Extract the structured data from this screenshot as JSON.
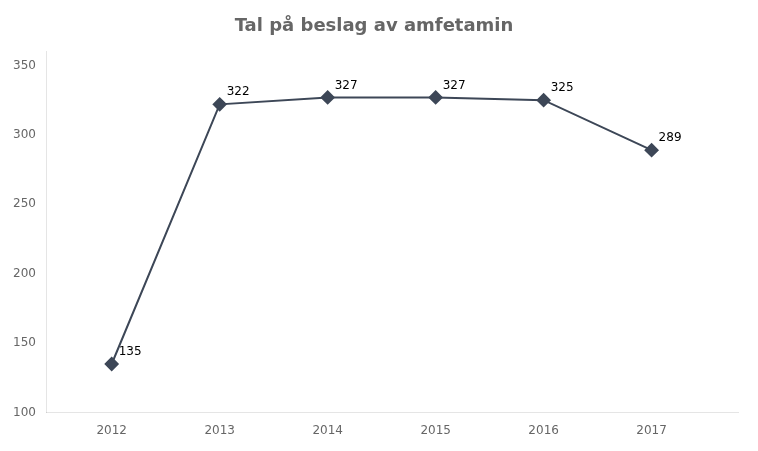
{
  "chart_data": {
    "type": "line",
    "title": "Tal på beslag av amfetamin",
    "x": [
      2012,
      2013,
      2014,
      2015,
      2016,
      2017
    ],
    "values": [
      135,
      322,
      327,
      327,
      325,
      289
    ],
    "color": "#3d4757",
    "marker": "diamond",
    "xlim": [
      2011.4,
      2017.8
    ],
    "xticks": [
      2012,
      2013,
      2014,
      2015,
      2016,
      2017
    ],
    "ylim": [
      100,
      360
    ],
    "yticks": [
      100,
      150,
      200,
      250,
      300,
      350
    ],
    "grid": false,
    "data_labels": true
  }
}
